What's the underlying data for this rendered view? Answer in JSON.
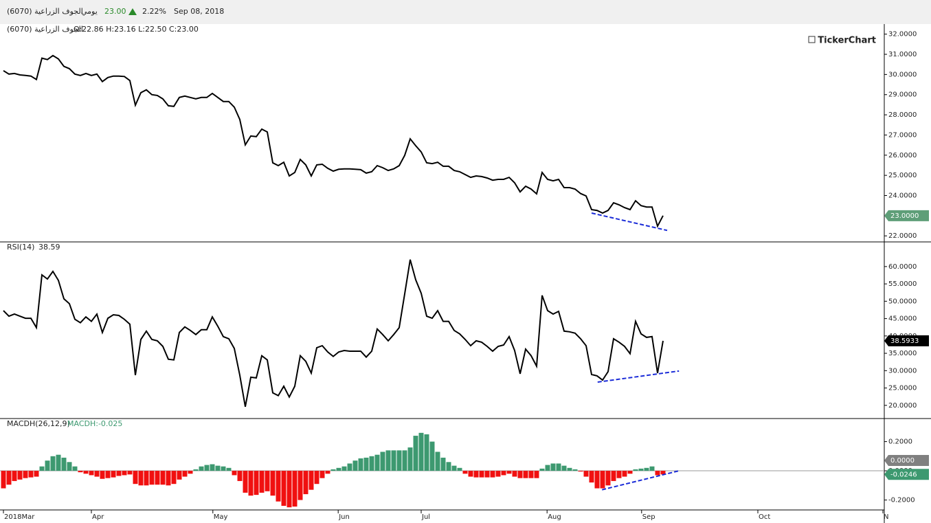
{
  "header": {
    "name": "الجوف الزراعية (6070)",
    "period": "يومي",
    "price": "23.00",
    "change": "2.22%",
    "date": "Sep 08, 2018",
    "watermark": "TickerChart"
  },
  "chart_data": [
    {
      "type": "line",
      "title": "الجوف الزراعية (6070)",
      "subtitle": "O:22.86 H:23.16 L:22.50 C:23.00",
      "color": "#000000",
      "values": [
        30.19,
        30.02,
        30.05,
        29.98,
        29.95,
        29.92,
        29.75,
        30.81,
        30.74,
        30.94,
        30.77,
        30.4,
        30.29,
        30.02,
        29.95,
        30.05,
        29.95,
        30.02,
        29.65,
        29.85,
        29.92,
        29.92,
        29.9,
        29.7,
        28.48,
        29.1,
        29.24,
        29.0,
        28.96,
        28.79,
        28.45,
        28.42,
        28.86,
        28.93,
        28.86,
        28.79,
        28.86,
        28.86,
        29.06,
        28.86,
        28.66,
        28.66,
        28.38,
        27.77,
        26.51,
        26.95,
        26.92,
        27.29,
        27.15,
        25.62,
        25.48,
        25.65,
        24.97,
        25.14,
        25.79,
        25.52,
        24.97,
        25.52,
        25.55,
        25.35,
        25.21,
        25.3,
        25.32,
        25.32,
        25.3,
        25.28,
        25.11,
        25.18,
        25.48,
        25.38,
        25.24,
        25.32,
        25.48,
        25.99,
        26.81,
        26.47,
        26.16,
        25.62,
        25.58,
        25.65,
        25.45,
        25.45,
        25.24,
        25.18,
        25.04,
        24.9,
        24.97,
        24.94,
        24.87,
        24.76,
        24.8,
        24.8,
        24.9,
        24.63,
        24.18,
        24.46,
        24.32,
        24.08,
        25.14,
        24.8,
        24.73,
        24.8,
        24.39,
        24.39,
        24.32,
        24.1,
        23.98,
        23.3,
        23.26,
        23.13,
        23.26,
        23.64,
        23.54,
        23.4,
        23.3,
        23.74,
        23.5,
        23.43,
        23.43,
        22.48,
        23.0
      ],
      "current_label": "23.0000",
      "badge_color": "#5e9e78",
      "trendline": {
        "x": [
          107,
          120.75
        ],
        "y": [
          23.13,
          22.27
        ],
        "color": "#1a2bd8"
      },
      "xlim": [
        0,
        160.25
      ],
      "ylim": [
        21.7,
        32.5
      ],
      "yticks": [
        {
          "value": 22,
          "label": "22.0000"
        },
        {
          "value": 23,
          "label": "23.0000"
        },
        {
          "value": 24,
          "label": "24.0000"
        },
        {
          "value": 25,
          "label": "25.0000"
        },
        {
          "value": 26,
          "label": "26.0000"
        },
        {
          "value": 27,
          "label": "27.0000"
        },
        {
          "value": 28,
          "label": "28.0000"
        },
        {
          "value": 29,
          "label": "29.0000"
        },
        {
          "value": 30,
          "label": "30.0000"
        },
        {
          "value": 31,
          "label": "31.0000"
        },
        {
          "value": 32,
          "label": "32.0000"
        }
      ]
    },
    {
      "type": "line",
      "title": "RSI(14)",
      "subtitle": 38.59,
      "color": "#000000",
      "values": [
        47.3,
        45.7,
        46.3,
        45.7,
        45.1,
        45.1,
        42.4,
        57.6,
        56.4,
        58.6,
        56.0,
        50.7,
        49.3,
        44.8,
        43.8,
        45.5,
        44.2,
        46.3,
        41.0,
        45.1,
        46.1,
        45.9,
        44.8,
        43.4,
        28.7,
        39.0,
        41.4,
        39.0,
        38.6,
        37.0,
        33.3,
        33.1,
        41.0,
        42.6,
        41.6,
        40.4,
        41.8,
        41.8,
        45.5,
        42.8,
        39.8,
        39.2,
        36.4,
        28.7,
        19.6,
        28.1,
        27.9,
        34.3,
        33.1,
        23.6,
        22.8,
        25.5,
        22.4,
        25.5,
        34.3,
        32.7,
        29.3,
        36.6,
        37.2,
        35.4,
        34.1,
        35.4,
        35.8,
        35.6,
        35.6,
        35.6,
        33.9,
        35.6,
        42.0,
        40.4,
        38.6,
        40.4,
        42.4,
        52.1,
        62.0,
        56.2,
        52.3,
        45.7,
        45.1,
        47.3,
        44.2,
        44.2,
        41.6,
        40.6,
        39.0,
        37.2,
        38.6,
        38.2,
        37.0,
        35.6,
        37.0,
        37.4,
        39.8,
        35.8,
        29.1,
        36.2,
        34.3,
        31.3,
        51.7,
        47.3,
        46.3,
        47.1,
        41.4,
        41.2,
        40.8,
        39.2,
        37.2,
        28.9,
        28.5,
        27.3,
        29.7,
        39.2,
        38.2,
        37.0,
        34.9,
        44.2,
        40.6,
        39.6,
        39.8,
        29.3,
        38.5933
      ],
      "badge_color": "#000000",
      "trendline": {
        "x": [
          108.1,
          122.9
        ],
        "y": [
          26.7,
          29.9
        ],
        "color": "#1a2bd8"
      },
      "xlim": [
        0,
        160.25
      ],
      "ylim": [
        16.2,
        67.1
      ],
      "yticks": [
        {
          "value": 20,
          "label": "20.0000"
        },
        {
          "value": 25,
          "label": "25.0000"
        },
        {
          "value": 30,
          "label": "30.0000"
        },
        {
          "value": 35,
          "label": "35.0000"
        },
        {
          "value": 40,
          "label": "40.0000"
        },
        {
          "value": 45,
          "label": "45.0000"
        },
        {
          "value": 50,
          "label": "50.0000"
        },
        {
          "value": 55,
          "label": "55.0000"
        },
        {
          "value": 60,
          "label": "60.0000"
        }
      ]
    },
    {
      "type": "bar",
      "title": "MACDH(26,12,9)",
      "subtitle": "MACDH:-0.025",
      "up_color": "#3d9970",
      "down_color": "#f01010",
      "values": [
        -0.12,
        -0.095,
        -0.07,
        -0.06,
        -0.05,
        -0.045,
        -0.04,
        0.03,
        0.07,
        0.1,
        0.11,
        0.09,
        0.06,
        0.03,
        -0.01,
        -0.02,
        -0.03,
        -0.04,
        -0.055,
        -0.05,
        -0.045,
        -0.035,
        -0.03,
        -0.025,
        -0.09,
        -0.1,
        -0.1,
        -0.095,
        -0.095,
        -0.095,
        -0.1,
        -0.09,
        -0.06,
        -0.04,
        -0.02,
        0.01,
        0.03,
        0.04,
        0.045,
        0.035,
        0.03,
        0.02,
        -0.03,
        -0.07,
        -0.15,
        -0.17,
        -0.165,
        -0.15,
        -0.14,
        -0.17,
        -0.21,
        -0.24,
        -0.25,
        -0.245,
        -0.2,
        -0.16,
        -0.13,
        -0.09,
        -0.05,
        -0.02,
        0.01,
        0.02,
        0.03,
        0.05,
        0.07,
        0.085,
        0.09,
        0.1,
        0.11,
        0.13,
        0.14,
        0.14,
        0.14,
        0.14,
        0.16,
        0.24,
        0.26,
        0.25,
        0.2,
        0.13,
        0.09,
        0.06,
        0.035,
        0.02,
        -0.02,
        -0.04,
        -0.045,
        -0.045,
        -0.045,
        -0.045,
        -0.04,
        -0.03,
        -0.02,
        -0.04,
        -0.05,
        -0.05,
        -0.05,
        -0.05,
        0.015,
        0.04,
        0.05,
        0.05,
        0.035,
        0.02,
        0.01,
        -0.005,
        -0.04,
        -0.08,
        -0.12,
        -0.12,
        -0.1,
        -0.07,
        -0.05,
        -0.04,
        -0.02,
        0.01,
        0.015,
        0.02,
        0.03,
        -0.03,
        -0.0246
      ],
      "baseline": 0,
      "zero_label": "0.0000",
      "zero_badge_color": "#808080",
      "badge_color": "#3d9970",
      "trendline": {
        "x": [
          108.9,
          122.9
        ],
        "y": [
          -0.13,
          0.0
        ],
        "color": "#1a2bd8"
      },
      "xlim": [
        0,
        160.25
      ],
      "ylim": [
        -0.268,
        0.358
      ],
      "yticks": [
        {
          "value": -0.2,
          "label": "-0.2000"
        },
        {
          "value": 0,
          "label": "0.0000"
        },
        {
          "value": 0.2,
          "label": "0.2000"
        }
      ],
      "xticks": [
        {
          "value": 0,
          "label": "2018Mar"
        },
        {
          "value": 16,
          "label": "Apr"
        },
        {
          "value": 38.1,
          "label": "May"
        },
        {
          "value": 60.9,
          "label": "Jun"
        },
        {
          "value": 76,
          "label": "Jul"
        },
        {
          "value": 98.9,
          "label": "Aug"
        },
        {
          "value": 116.1,
          "label": "Sep"
        },
        {
          "value": 137.25,
          "label": "Oct"
        },
        {
          "value": 160,
          "label": "N"
        }
      ]
    }
  ]
}
